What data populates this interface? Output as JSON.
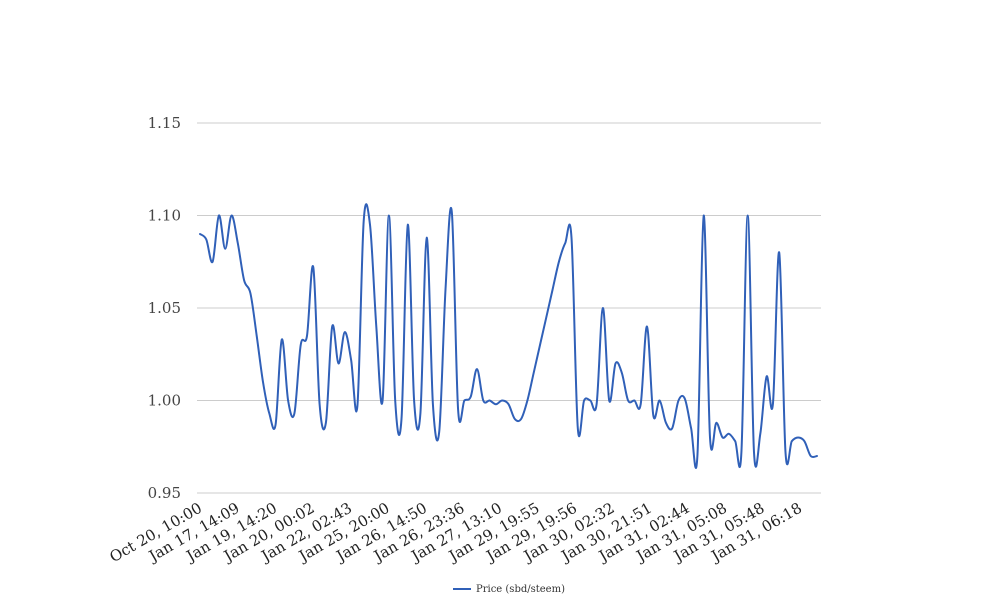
{
  "chart_data": {
    "type": "line",
    "title": "",
    "xlabel": "",
    "ylabel": "",
    "ylim": [
      0.95,
      1.15
    ],
    "yticks": [
      "0.95",
      "1.00",
      "1.05",
      "1.10",
      "1.15"
    ],
    "grid": true,
    "legend_position": "bottom",
    "x_tick_labels": [
      "Oct 20, 10:00",
      "Jan 17, 14:09",
      "Jan 19, 14:20",
      "Jan 20, 00:02",
      "Jan 22, 02:43",
      "Jan 25, 20:00",
      "Jan 26, 14:50",
      "Jan 26, 23:36",
      "Jan 27, 13:10",
      "Jan 29, 19:55",
      "Jan 29, 19:56",
      "Jan 30, 02:32",
      "Jan 30, 21:51",
      "Jan 31, 02:44",
      "Jan 31, 05:08",
      "Jan 31, 05:48",
      "Jan 31, 06:18"
    ],
    "series": [
      {
        "name": "Price (sbd/steem)",
        "color": "#3060b8",
        "values": [
          1.09,
          1.087,
          1.075,
          1.1,
          1.082,
          1.1,
          1.085,
          1.065,
          1.058,
          1.035,
          1.01,
          0.993,
          0.987,
          1.033,
          1.0,
          0.993,
          1.03,
          1.035,
          1.072,
          0.998,
          0.988,
          1.04,
          1.02,
          1.037,
          1.022,
          0.997,
          1.097,
          1.095,
          1.04,
          1.0,
          1.1,
          1.0,
          0.99,
          1.095,
          1.0,
          0.993,
          1.088,
          0.998,
          0.983,
          1.06,
          1.102,
          0.995,
          1.0,
          1.002,
          1.017,
          1.0,
          1.0,
          0.998,
          1.0,
          0.998,
          0.99,
          0.99,
          1.0,
          1.015,
          1.03,
          1.045,
          1.06,
          1.075,
          1.085,
          1.088,
          0.985,
          1.0,
          1.0,
          0.998,
          1.05,
          1.0,
          1.02,
          1.015,
          1.0,
          1.0,
          0.998,
          1.04,
          0.992,
          1.0,
          0.988,
          0.985,
          1.0,
          1.001,
          0.985,
          0.97,
          1.1,
          0.98,
          0.988,
          0.98,
          0.982,
          0.978,
          0.972,
          1.1,
          0.972,
          0.982,
          1.013,
          0.998,
          1.08,
          0.972,
          0.978,
          0.98,
          0.978,
          0.97,
          0.97
        ]
      }
    ]
  }
}
